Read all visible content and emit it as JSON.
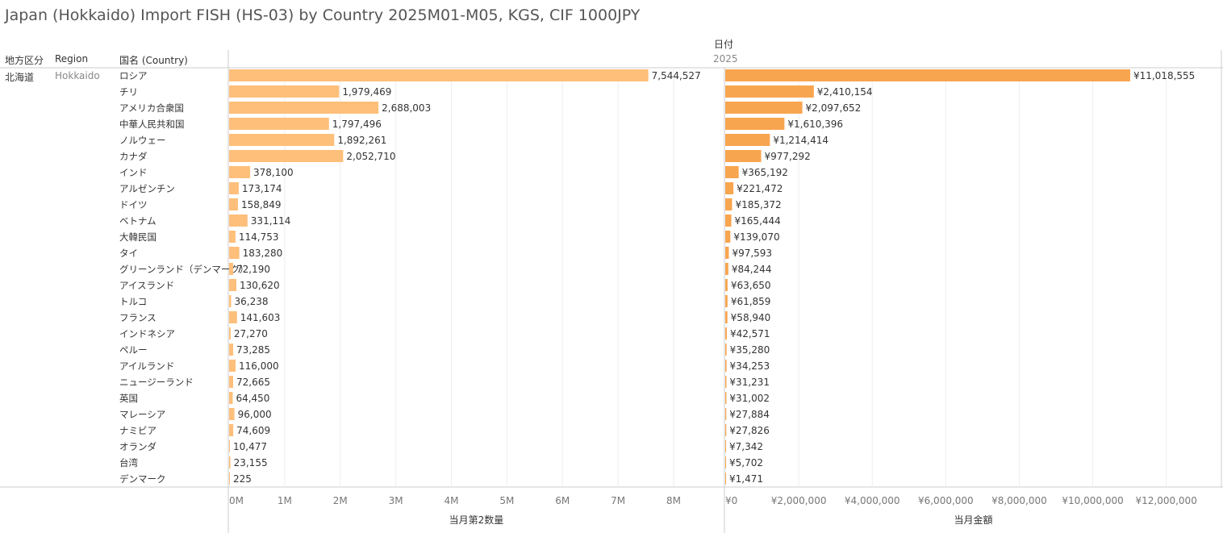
{
  "title": "Japan (Hokkaido) Import FISH (HS-03) by Country 2025M01-M05, KGS, CIF 1000JPY",
  "headers": {
    "area": "地方区分",
    "region": "Region",
    "country": "国名 (Country)",
    "date_field": "日付",
    "year": "2025"
  },
  "row_group": {
    "area": "北海道",
    "region": "Hokkaido"
  },
  "colors": {
    "qty_bar": "#FDBF7A",
    "value_bar": "#F8A54F",
    "grid": "#eeeeee",
    "divider": "#cccccc"
  },
  "chart_data": [
    {
      "type": "bar",
      "orientation": "horizontal",
      "xlabel": "当月第2数量",
      "categories": [
        "ロシア",
        "チリ",
        "アメリカ合衆国",
        "中華人民共和国",
        "ノルウェー",
        "カナダ",
        "インド",
        "アルゼンチン",
        "ドイツ",
        "ベトナム",
        "大韓民国",
        "タイ",
        "グリーンランド（デンマーク）",
        "アイスランド",
        "トルコ",
        "フランス",
        "インドネシア",
        "ペルー",
        "アイルランド",
        "ニュージーランド",
        "英国",
        "マレーシア",
        "ナミビア",
        "オランダ",
        "台湾",
        "デンマーク"
      ],
      "values": [
        7544527,
        1979469,
        2688003,
        1797496,
        1892261,
        2052710,
        378100,
        173174,
        158849,
        331114,
        114753,
        183280,
        72190,
        130620,
        36238,
        141603,
        27270,
        73285,
        116000,
        72665,
        64450,
        96000,
        74609,
        10477,
        23155,
        225
      ],
      "value_labels": [
        "7,544,527",
        "1,979,469",
        "2,688,003",
        "1,797,496",
        "1,892,261",
        "2,052,710",
        "378,100",
        "173,174",
        "158,849",
        "331,114",
        "114,753",
        "183,280",
        "72,190",
        "130,620",
        "36,238",
        "141,603",
        "27,270",
        "73,285",
        "116,000",
        "72,665",
        "64,450",
        "96,000",
        "74,609",
        "10,477",
        "23,155",
        "225"
      ],
      "xlim": [
        0,
        8900000
      ],
      "ticks": [
        0,
        1000000,
        2000000,
        3000000,
        4000000,
        5000000,
        6000000,
        7000000,
        8000000
      ],
      "tick_labels": [
        "0M",
        "1M",
        "2M",
        "3M",
        "4M",
        "5M",
        "6M",
        "7M",
        "8M"
      ],
      "grid": true
    },
    {
      "type": "bar",
      "orientation": "horizontal",
      "xlabel": "当月金額",
      "categories": [
        "ロシア",
        "チリ",
        "アメリカ合衆国",
        "中華人民共和国",
        "ノルウェー",
        "カナダ",
        "インド",
        "アルゼンチン",
        "ドイツ",
        "ベトナム",
        "大韓民国",
        "タイ",
        "グリーンランド（デンマーク）",
        "アイスランド",
        "トルコ",
        "フランス",
        "インドネシア",
        "ペルー",
        "アイルランド",
        "ニュージーランド",
        "英国",
        "マレーシア",
        "ナミビア",
        "オランダ",
        "台湾",
        "デンマーク"
      ],
      "values": [
        11018555,
        2410154,
        2097652,
        1610396,
        1214414,
        977292,
        365192,
        221472,
        185372,
        165444,
        139070,
        97593,
        84244,
        63650,
        61859,
        58940,
        42571,
        35280,
        34253,
        31231,
        31002,
        27884,
        27826,
        7342,
        5702,
        1471
      ],
      "value_labels": [
        "¥11,018,555",
        "¥2,410,154",
        "¥2,097,652",
        "¥1,610,396",
        "¥1,214,414",
        "¥977,292",
        "¥365,192",
        "¥221,472",
        "¥185,372",
        "¥165,444",
        "¥139,070",
        "¥97,593",
        "¥84,244",
        "¥63,650",
        "¥61,859",
        "¥58,940",
        "¥42,571",
        "¥35,280",
        "¥34,253",
        "¥31,231",
        "¥31,002",
        "¥27,884",
        "¥27,826",
        "¥7,342",
        "¥5,702",
        "¥1,471"
      ],
      "xlim": [
        0,
        13500000
      ],
      "ticks": [
        0,
        2000000,
        4000000,
        6000000,
        8000000,
        10000000,
        12000000
      ],
      "tick_labels": [
        "¥0",
        "¥2,000,000",
        "¥4,000,000",
        "¥6,000,000",
        "¥8,000,000",
        "¥10,000,000",
        "¥12,000,000"
      ],
      "grid": true
    }
  ]
}
